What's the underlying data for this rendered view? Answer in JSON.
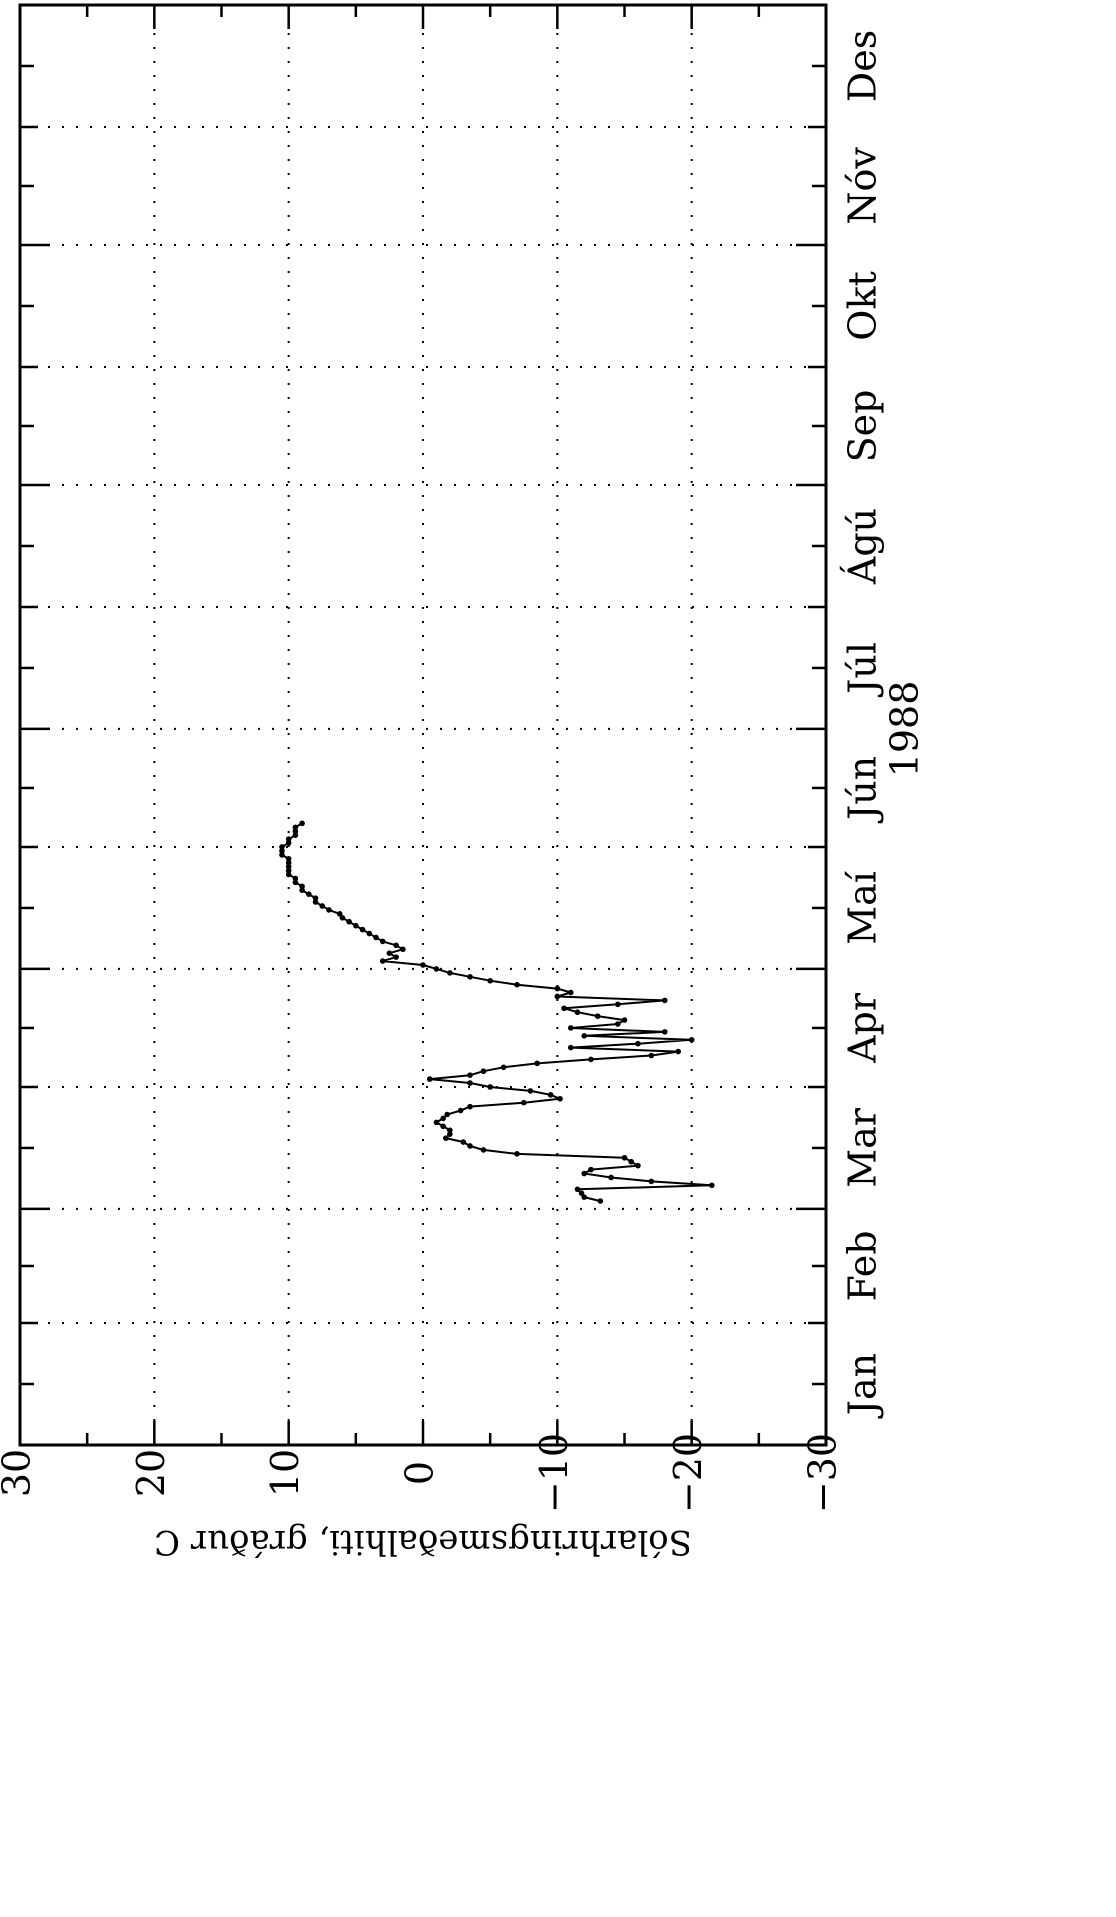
{
  "chart_data": {
    "type": "line",
    "title": "",
    "xlabel": "1988",
    "ylabel": "Sólarhringsmeðalhiti, gráður C",
    "ylim": [
      -30,
      30
    ],
    "y_ticks": [
      "30",
      "20",
      "10",
      "0",
      "−10",
      "−20",
      "−30"
    ],
    "y_tick_values": [
      30,
      20,
      10,
      0,
      -10,
      -20,
      -30
    ],
    "months": [
      "Jan",
      "Feb",
      "Mar",
      "Apr",
      "Maí",
      "Jún",
      "Júl",
      "Ágú",
      "Sep",
      "Okt",
      "Nóv",
      "Des"
    ],
    "grid": true,
    "series": [
      {
        "name": "",
        "values_by_day": [
          {
            "start_day": 62,
            "values": [
              -13.2,
              -12.0,
              -11.8,
              -11.5,
              -21.5,
              -17.0,
              -14.0,
              -12.0,
              -12.5,
              -16.0,
              -15.5,
              -15.0,
              -7.0,
              -4.5,
              -3.5,
              -3.0,
              -1.7,
              -2.0,
              -2.0,
              -1.5,
              -1.0,
              -1.5,
              -1.8,
              -2.8,
              -3.5,
              -7.5,
              -10.2,
              -9.5,
              -8.0,
              -5.0,
              -3.5,
              -0.5,
              -3.5,
              -4.5,
              -6.0,
              -8.5,
              -12.5,
              -17.0,
              -19.0,
              -11.0,
              -16.0,
              -20.0,
              -12.0,
              -18.0,
              -11.0,
              -14.5,
              -15.0,
              -13.0,
              -11.5,
              -10.5,
              -14.5,
              -18.0,
              -10.0,
              -11.0,
              -10.0,
              -7.0,
              -5.0,
              -3.5,
              -2.0,
              -1.0,
              0.0,
              3.0,
              2.0,
              2.5,
              1.5,
              2.0,
              3.0,
              3.5,
              4.0,
              4.5,
              5.0,
              5.5,
              6.0,
              6.2,
              7.0,
              7.5,
              8.0,
              8.0,
              8.5,
              9.0,
              9.0,
              9.5,
              9.5,
              10.0,
              10.0,
              10.0,
              10.0,
              10.0,
              10.5,
              10.5,
              10.5,
              10.0,
              10.0,
              9.5,
              9.5,
              9.5,
              9.0
            ]
          }
        ]
      }
    ]
  }
}
